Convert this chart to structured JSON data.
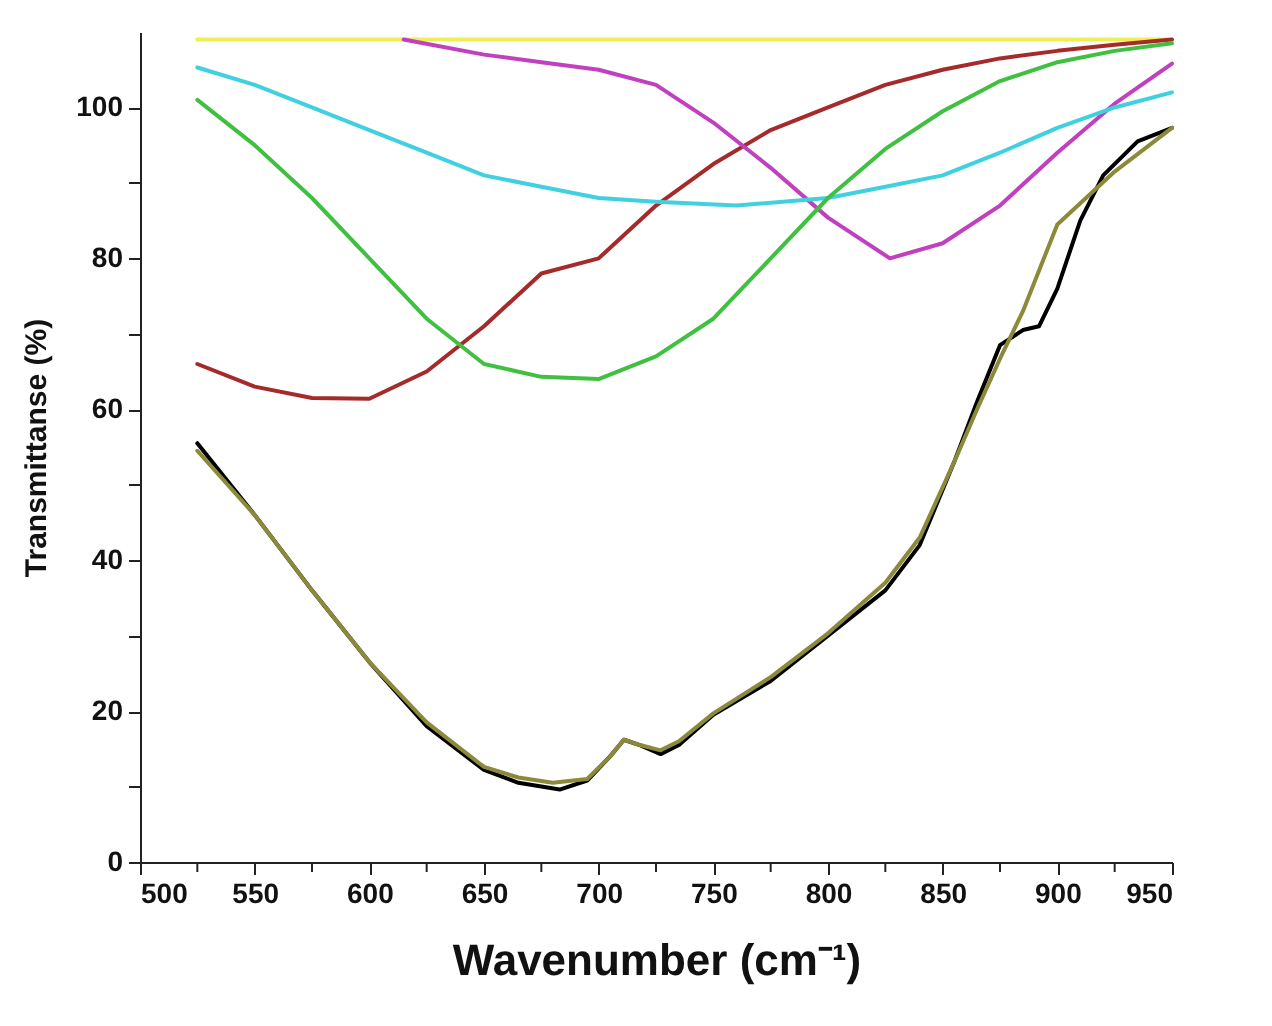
{
  "chart_data": {
    "type": "line",
    "xlabel": "Wavenumber (cm⁻¹)",
    "ylabel": "Transmittanse (%)",
    "xlim": [
      500,
      950
    ],
    "ylim": [
      0,
      110
    ],
    "xticks": [
      500,
      {
        "value": 525,
        "label": null
      },
      550,
      {
        "value": 575,
        "label": null
      },
      600,
      {
        "value": 625,
        "label": null
      },
      650,
      {
        "value": 675,
        "label": null
      },
      700,
      {
        "value": 725,
        "label": null
      },
      750,
      {
        "value": 775,
        "label": null
      },
      800,
      {
        "value": 825,
        "label": null
      },
      850,
      {
        "value": 875,
        "label": null
      },
      900,
      {
        "value": 925,
        "label": null
      },
      950
    ],
    "yticks": [
      0,
      {
        "value": 10,
        "label": null
      },
      20,
      {
        "value": 30,
        "label": null
      },
      40,
      {
        "value": 50,
        "label": null
      },
      60,
      {
        "value": 70,
        "label": null
      },
      80,
      {
        "value": 90,
        "label": null
      },
      100
    ],
    "grid": false,
    "marker": "none",
    "line_style": "solid",
    "series": [
      {
        "color": "#eeee55",
        "x": [
          525,
          950
        ],
        "values": [
          109,
          109
        ]
      },
      {
        "color": "#a52a2a",
        "x": [
          525,
          550,
          575,
          600,
          625,
          650,
          675,
          700,
          725,
          750,
          775,
          800,
          825,
          850,
          875,
          900,
          925,
          950
        ],
        "values": [
          66,
          63,
          61.5,
          61.4,
          65,
          71,
          78,
          80,
          87,
          92.5,
          97,
          100,
          103,
          105,
          106.5,
          107.5,
          108.3,
          109
        ]
      },
      {
        "color": "#c040c0",
        "x": [
          615,
          650,
          675,
          700,
          725,
          750,
          775,
          800,
          827,
          850,
          875,
          900,
          925,
          950
        ],
        "values": [
          109,
          107,
          106,
          105,
          103,
          98,
          92,
          85.4,
          80,
          82,
          87,
          94,
          100.5,
          105.8
        ]
      },
      {
        "color": "#40d0e0",
        "x": [
          525,
          550,
          575,
          600,
          625,
          650,
          675,
          700,
          725,
          760,
          800,
          825,
          850,
          875,
          900,
          925,
          950
        ],
        "values": [
          105.3,
          103,
          100,
          97,
          94,
          91,
          89.5,
          88,
          87.5,
          87,
          88,
          89.5,
          91,
          94,
          97.3,
          100,
          102
        ]
      },
      {
        "color": "#40c040",
        "x": [
          525,
          550,
          575,
          600,
          625,
          650,
          675,
          700,
          725,
          750,
          775,
          800,
          825,
          850,
          875,
          900,
          925,
          950
        ],
        "values": [
          101,
          95,
          88,
          80,
          72,
          66,
          64.3,
          64,
          67,
          72,
          80,
          88,
          94.5,
          99.5,
          103.5,
          106,
          107.5,
          108.5
        ]
      },
      {
        "color": "#000000",
        "x": [
          525,
          550,
          575,
          600,
          625,
          650,
          665,
          683,
          695,
          705,
          711,
          718,
          727,
          735,
          750,
          775,
          800,
          825,
          840,
          855,
          865,
          875,
          885,
          892,
          900,
          910,
          920,
          935,
          950
        ],
        "values": [
          55.5,
          46,
          36,
          26.5,
          18,
          12.2,
          10.5,
          9.6,
          10.8,
          14,
          16.2,
          15.5,
          14.3,
          15.5,
          19.5,
          24,
          30,
          36,
          42,
          53,
          61,
          68.5,
          70.5,
          71,
          76,
          85,
          91,
          95.5,
          97.3
        ]
      },
      {
        "color": "#8a8a3a",
        "x": [
          525,
          550,
          575,
          600,
          625,
          650,
          665,
          680,
          695,
          705,
          711,
          718,
          727,
          735,
          750,
          775,
          800,
          825,
          840,
          855,
          865,
          875,
          885,
          900,
          925,
          950
        ],
        "values": [
          54.5,
          46,
          36,
          26.5,
          18.5,
          12.6,
          11.2,
          10.5,
          11,
          14,
          16.2,
          15.5,
          14.8,
          16,
          19.7,
          24.5,
          30.3,
          37,
          43,
          53,
          60,
          66.7,
          73,
          84.5,
          91.5,
          97.3
        ]
      }
    ]
  }
}
